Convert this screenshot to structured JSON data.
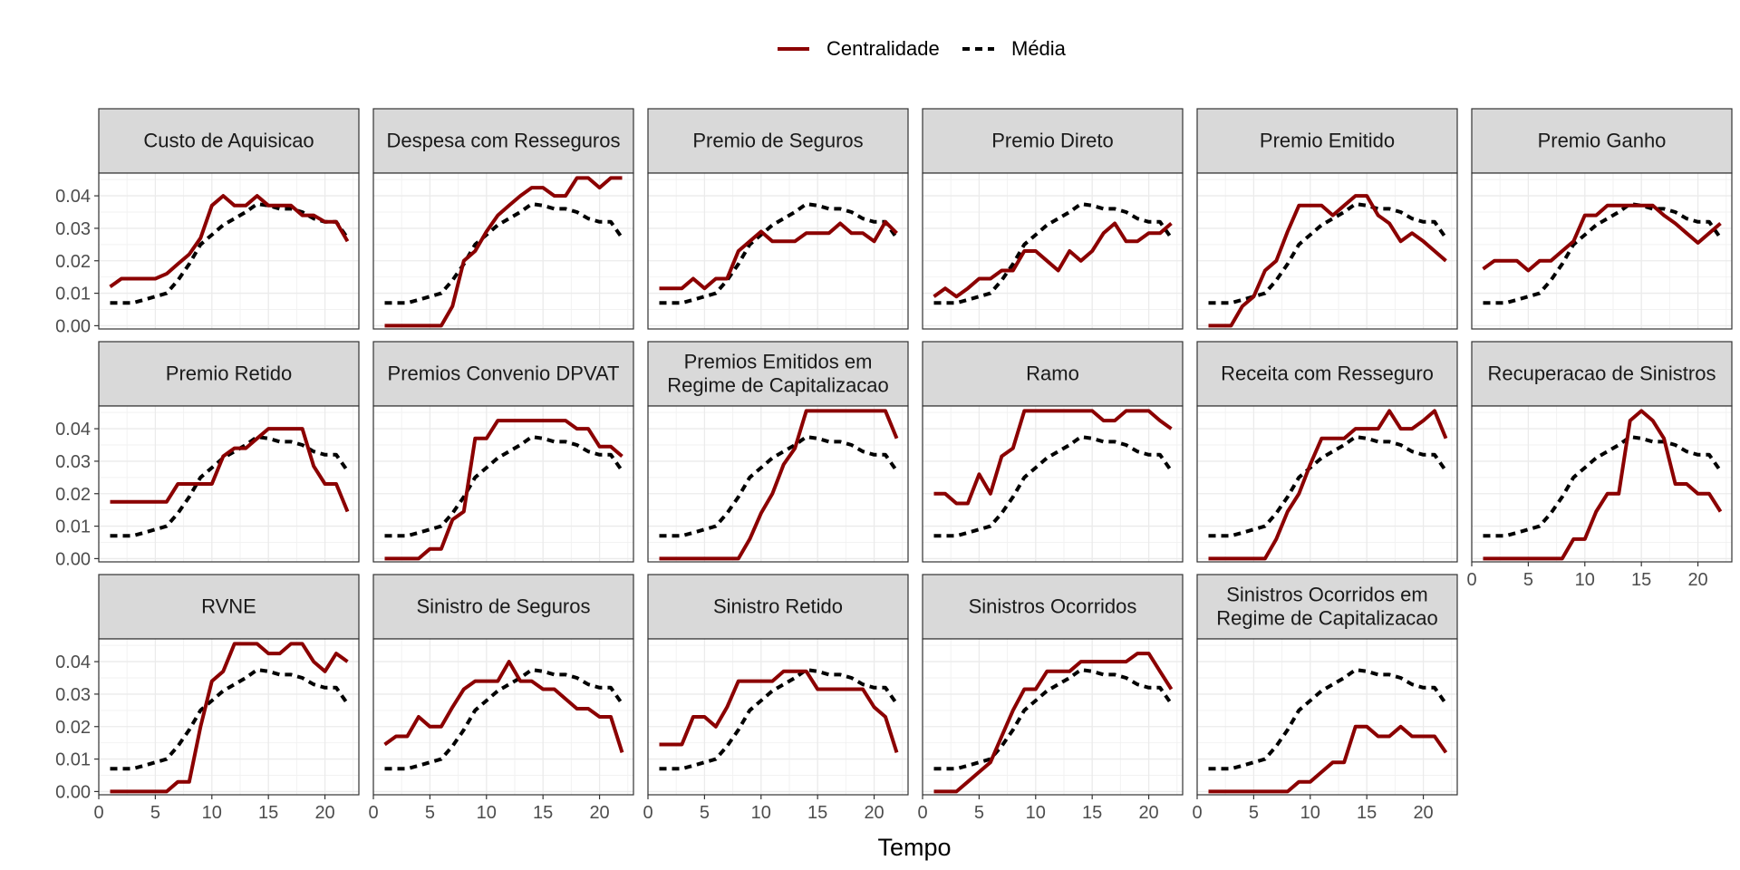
{
  "chart_data": {
    "type": "line",
    "facet_layout": "6 columns x 3 rows",
    "xlabel": "Tempo",
    "ylabel": "",
    "xlim": [
      0,
      23
    ],
    "ylim": [
      -0.001,
      0.047
    ],
    "x_ticks": [
      0,
      5,
      10,
      15,
      20
    ],
    "y_ticks": [
      0.0,
      0.01,
      0.02,
      0.03,
      0.04
    ],
    "y_tick_labels": [
      "0.00",
      "0.01",
      "0.02",
      "0.03",
      "0.04"
    ],
    "grid": true,
    "legend_position": "top",
    "legend": [
      {
        "name": "Centralidade",
        "color": "#8B0000",
        "style": "solid"
      },
      {
        "name": "Média",
        "color": "#000000",
        "style": "dashed"
      }
    ],
    "x": [
      1,
      2,
      3,
      4,
      5,
      6,
      7,
      8,
      9,
      10,
      11,
      12,
      13,
      14,
      15,
      16,
      17,
      18,
      19,
      20,
      21,
      22
    ],
    "media": [
      0.007,
      0.007,
      0.007,
      0.008,
      0.009,
      0.01,
      0.014,
      0.019,
      0.025,
      0.028,
      0.031,
      0.033,
      0.035,
      0.0375,
      0.037,
      0.036,
      0.036,
      0.035,
      0.033,
      0.032,
      0.032,
      0.027
    ],
    "panels": [
      {
        "title": [
          "Custo de Aquisicao"
        ],
        "values": [
          0.012,
          0.0145,
          0.0145,
          0.0145,
          0.0145,
          0.016,
          0.019,
          0.022,
          0.027,
          0.037,
          0.04,
          0.037,
          0.037,
          0.04,
          0.037,
          0.037,
          0.037,
          0.034,
          0.034,
          0.032,
          0.032,
          0.026
        ]
      },
      {
        "title": [
          "Despesa com Resseguros"
        ],
        "values": [
          0,
          0,
          0,
          0,
          0,
          0,
          0.006,
          0.02,
          0.023,
          0.029,
          0.034,
          0.037,
          0.04,
          0.0425,
          0.0425,
          0.04,
          0.04,
          0.0455,
          0.0455,
          0.0425,
          0.0455,
          0.0455
        ]
      },
      {
        "title": [
          "Premio de Seguros"
        ],
        "values": [
          0.0115,
          0.0115,
          0.0115,
          0.0145,
          0.0115,
          0.0145,
          0.0145,
          0.023,
          0.026,
          0.029,
          0.026,
          0.026,
          0.026,
          0.0285,
          0.0285,
          0.0285,
          0.0315,
          0.0285,
          0.0285,
          0.026,
          0.032,
          0.0285
        ]
      },
      {
        "title": [
          "Premio Direto"
        ],
        "values": [
          0.009,
          0.0115,
          0.009,
          0.0115,
          0.0145,
          0.0145,
          0.017,
          0.017,
          0.023,
          0.023,
          0.02,
          0.017,
          0.023,
          0.02,
          0.023,
          0.0285,
          0.0315,
          0.026,
          0.026,
          0.0285,
          0.0285,
          0.0315
        ]
      },
      {
        "title": [
          "Premio Emitido"
        ],
        "values": [
          0,
          0,
          0,
          0.006,
          0.009,
          0.017,
          0.02,
          0.029,
          0.037,
          0.037,
          0.037,
          0.034,
          0.037,
          0.04,
          0.04,
          0.034,
          0.0315,
          0.026,
          0.0285,
          0.026,
          0.023,
          0.02
        ]
      },
      {
        "title": [
          "Premio Ganho"
        ],
        "values": [
          0.0175,
          0.02,
          0.02,
          0.02,
          0.017,
          0.02,
          0.02,
          0.023,
          0.026,
          0.034,
          0.034,
          0.037,
          0.037,
          0.037,
          0.037,
          0.037,
          0.034,
          0.0315,
          0.0285,
          0.0255,
          0.0285,
          0.0315
        ]
      },
      {
        "title": [
          "Premio Retido"
        ],
        "values": [
          0.0175,
          0.0175,
          0.0175,
          0.0175,
          0.0175,
          0.0175,
          0.023,
          0.023,
          0.023,
          0.023,
          0.0315,
          0.034,
          0.034,
          0.037,
          0.04,
          0.04,
          0.04,
          0.04,
          0.0285,
          0.023,
          0.023,
          0.0145
        ]
      },
      {
        "title": [
          "Premios Convenio DPVAT"
        ],
        "values": [
          0,
          0,
          0,
          0,
          0.003,
          0.003,
          0.012,
          0.0145,
          0.037,
          0.037,
          0.0425,
          0.0425,
          0.0425,
          0.0425,
          0.0425,
          0.0425,
          0.0425,
          0.04,
          0.04,
          0.0345,
          0.0345,
          0.0315
        ]
      },
      {
        "title": [
          "Premios Emitidos em",
          "Regime de Capitalizacao"
        ],
        "values": [
          0,
          0,
          0,
          0,
          0,
          0,
          0,
          0,
          0.006,
          0.014,
          0.02,
          0.029,
          0.034,
          0.0455,
          0.0455,
          0.0455,
          0.0455,
          0.0455,
          0.0455,
          0.0455,
          0.0455,
          0.037
        ]
      },
      {
        "title": [
          "Ramo"
        ],
        "values": [
          0.02,
          0.02,
          0.017,
          0.017,
          0.026,
          0.02,
          0.0315,
          0.034,
          0.0455,
          0.0455,
          0.0455,
          0.0455,
          0.0455,
          0.0455,
          0.0455,
          0.0425,
          0.0425,
          0.0455,
          0.0455,
          0.0455,
          0.0425,
          0.04
        ]
      },
      {
        "title": [
          "Receita com Resseguro"
        ],
        "values": [
          0,
          0,
          0,
          0,
          0,
          0,
          0.006,
          0.0145,
          0.02,
          0.029,
          0.037,
          0.037,
          0.037,
          0.04,
          0.04,
          0.04,
          0.0455,
          0.04,
          0.04,
          0.0425,
          0.0455,
          0.037
        ]
      },
      {
        "title": [
          "Recuperacao de Sinistros"
        ],
        "values": [
          0,
          0,
          0,
          0,
          0,
          0,
          0,
          0,
          0.006,
          0.006,
          0.0145,
          0.02,
          0.02,
          0.0425,
          0.0455,
          0.0425,
          0.037,
          0.023,
          0.023,
          0.02,
          0.02,
          0.0145
        ]
      },
      {
        "title": [
          "RVNE"
        ],
        "values": [
          0,
          0,
          0,
          0,
          0,
          0,
          0.003,
          0.003,
          0.02,
          0.034,
          0.037,
          0.0455,
          0.0455,
          0.0455,
          0.0425,
          0.0425,
          0.0455,
          0.0455,
          0.04,
          0.037,
          0.0425,
          0.04
        ]
      },
      {
        "title": [
          "Sinistro de Seguros"
        ],
        "values": [
          0.0145,
          0.017,
          0.017,
          0.023,
          0.02,
          0.02,
          0.026,
          0.0315,
          0.034,
          0.034,
          0.034,
          0.04,
          0.034,
          0.034,
          0.0315,
          0.0315,
          0.0285,
          0.0255,
          0.0255,
          0.023,
          0.023,
          0.012
        ]
      },
      {
        "title": [
          "Sinistro Retido"
        ],
        "values": [
          0.0145,
          0.0145,
          0.0145,
          0.023,
          0.023,
          0.02,
          0.026,
          0.034,
          0.034,
          0.034,
          0.034,
          0.037,
          0.037,
          0.037,
          0.0315,
          0.0315,
          0.0315,
          0.0315,
          0.0315,
          0.026,
          0.023,
          0.012
        ]
      },
      {
        "title": [
          "Sinistros Ocorridos"
        ],
        "values": [
          0,
          0,
          0,
          0.003,
          0.006,
          0.009,
          0.017,
          0.025,
          0.0315,
          0.0315,
          0.037,
          0.037,
          0.037,
          0.04,
          0.04,
          0.04,
          0.04,
          0.04,
          0.0425,
          0.0425,
          0.037,
          0.0315
        ]
      },
      {
        "title": [
          "Sinistros Ocorridos em",
          "Regime de Capitalizacao"
        ],
        "values": [
          0,
          0,
          0,
          0,
          0,
          0,
          0,
          0,
          0.003,
          0.003,
          0.006,
          0.009,
          0.009,
          0.02,
          0.02,
          0.017,
          0.017,
          0.02,
          0.017,
          0.017,
          0.017,
          0.012
        ]
      }
    ]
  }
}
